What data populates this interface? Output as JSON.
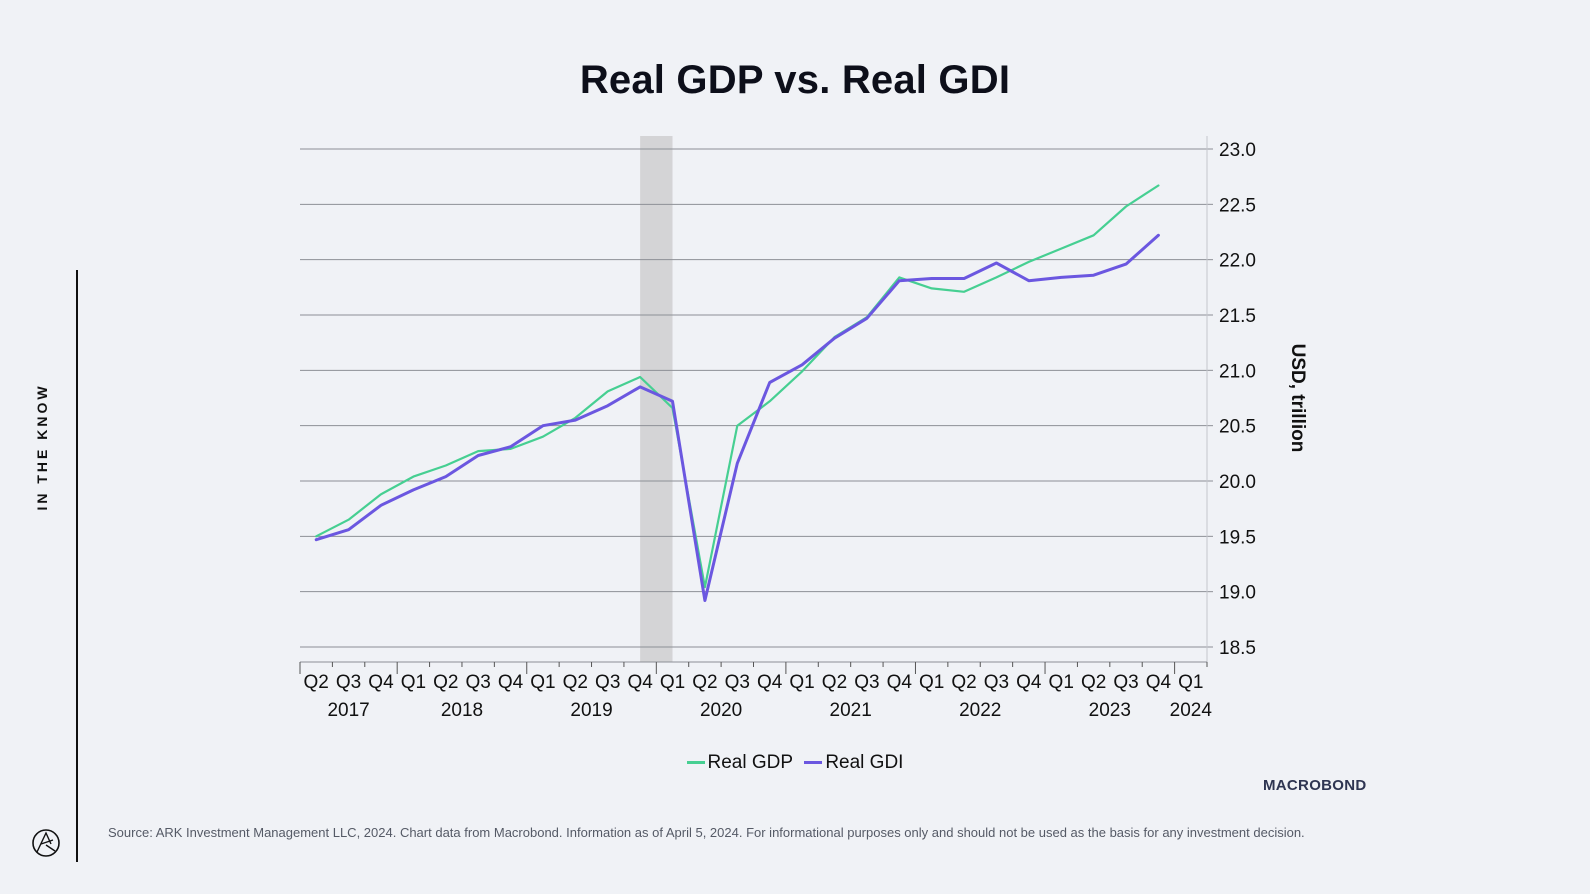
{
  "page": {
    "side_label": "IN THE KNOW",
    "source": "Source: ARK Investment Management LLC, 2024. Chart data from Macrobond. Information as of April 5, 2024. For informational purposes only and should not be used as the basis for any investment decision.",
    "watermark": "MACROBOND"
  },
  "chart_data": {
    "type": "line",
    "title": "Real GDP vs. Real GDI",
    "xlabel": "",
    "ylabel": "USD, trillion",
    "ylim": [
      18.5,
      23.0
    ],
    "yticks": [
      "23.0",
      "22.5",
      "22.0",
      "21.5",
      "21.0",
      "20.5",
      "20.0",
      "19.5",
      "19.0",
      "18.5"
    ],
    "grid": true,
    "legend_position": "bottom-center",
    "x": [
      "2017 Q2",
      "2017 Q3",
      "2017 Q4",
      "2018 Q1",
      "2018 Q2",
      "2018 Q3",
      "2018 Q4",
      "2019 Q1",
      "2019 Q2",
      "2019 Q3",
      "2019 Q4",
      "2020 Q1",
      "2020 Q2",
      "2020 Q3",
      "2020 Q4",
      "2021 Q1",
      "2021 Q2",
      "2021 Q3",
      "2021 Q4",
      "2022 Q1",
      "2022 Q2",
      "2022 Q3",
      "2022 Q4",
      "2023 Q1",
      "2023 Q2",
      "2023 Q3",
      "2023 Q4"
    ],
    "quarter_labels": [
      "Q2",
      "Q3",
      "Q4",
      "Q1",
      "Q2",
      "Q3",
      "Q4",
      "Q1",
      "Q2",
      "Q3",
      "Q4",
      "Q1",
      "Q2",
      "Q3",
      "Q4",
      "Q1",
      "Q2",
      "Q3",
      "Q4",
      "Q1",
      "Q2",
      "Q3",
      "Q4",
      "Q1",
      "Q2",
      "Q3",
      "Q4",
      "Q1"
    ],
    "year_labels": [
      {
        "text": "2017",
        "at_index": 1
      },
      {
        "text": "2018",
        "at_index": 4.5
      },
      {
        "text": "2019",
        "at_index": 8.5
      },
      {
        "text": "2020",
        "at_index": 12.5
      },
      {
        "text": "2021",
        "at_index": 16.5
      },
      {
        "text": "2022",
        "at_index": 20.5
      },
      {
        "text": "2023",
        "at_index": 24.5
      },
      {
        "text": "2024",
        "at_index": 27
      }
    ],
    "recession_band": {
      "from_index": 10.5,
      "to_index": 11.5,
      "color": "#d4d4d6"
    },
    "series": [
      {
        "name": "Real GDP",
        "color": "#46cf92",
        "values": [
          19.5,
          19.65,
          19.88,
          20.04,
          20.14,
          20.27,
          20.29,
          20.4,
          20.57,
          20.81,
          20.94,
          20.66,
          19.04,
          20.5,
          20.72,
          20.99,
          21.3,
          21.48,
          21.84,
          21.74,
          21.71,
          21.84,
          21.98,
          22.1,
          22.22,
          22.48,
          22.67
        ]
      },
      {
        "name": "Real GDI",
        "color": "#6b57e0",
        "values": [
          19.47,
          19.56,
          19.78,
          19.92,
          20.04,
          20.23,
          20.31,
          20.5,
          20.55,
          20.68,
          20.85,
          20.72,
          18.92,
          20.16,
          20.89,
          21.05,
          21.29,
          21.47,
          21.81,
          21.83,
          21.83,
          21.97,
          21.81,
          21.84,
          21.86,
          21.96,
          22.22
        ]
      }
    ]
  }
}
